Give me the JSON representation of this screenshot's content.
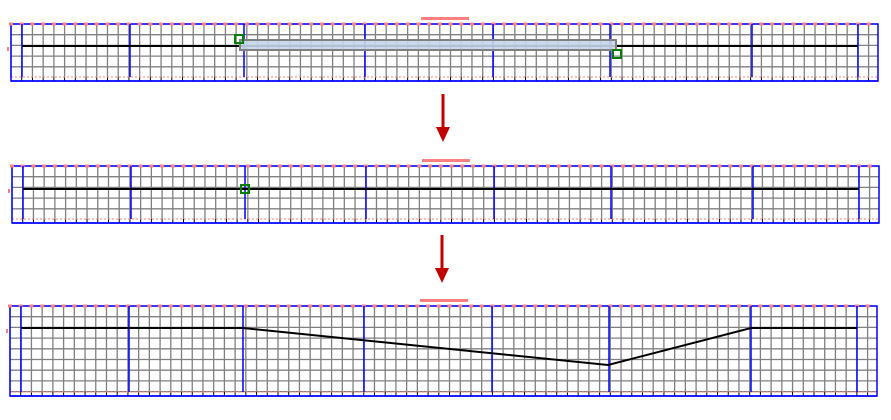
{
  "colors": {
    "grid": "#808080",
    "section_line": "#0000ff",
    "profile_line": "#000000",
    "marker": "#ff8080",
    "selection_fill": "#c5d5ea",
    "selection_stroke": "#808080",
    "handle": "#008000",
    "arrow": "#c00000"
  },
  "steps": [
    {
      "name": "select-range",
      "state": "selection"
    },
    {
      "name": "pick-point",
      "state": "point"
    },
    {
      "name": "result-profile",
      "state": "profile"
    }
  ],
  "icons": {
    "handle": "square-handle-icon",
    "arrow": "arrow-down-icon"
  }
}
